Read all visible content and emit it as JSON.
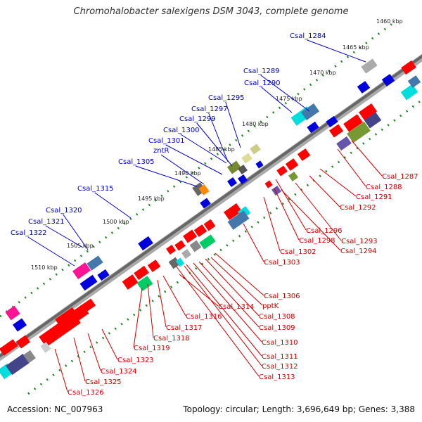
{
  "title": "Chromohalobacter salexigens DSM 3043, complete genome",
  "footer": {
    "accession": "Accession: NC_007963",
    "summary": "Topology: circular; Length: 3,696,649 bp; Genes: 3,388"
  },
  "ticks": [
    {
      "label": "1460 kbp"
    },
    {
      "label": "1465 kbp"
    },
    {
      "label": "1470 kbp"
    },
    {
      "label": "1475 kbp"
    },
    {
      "label": "1480 kbp"
    },
    {
      "label": "1485 kbp"
    },
    {
      "label": "1490 kbp"
    },
    {
      "label": "1495 kbp"
    },
    {
      "label": "1500 kbp"
    },
    {
      "label": "1505 kbp"
    },
    {
      "label": "1510 kbp"
    }
  ],
  "forward_labels": [
    "Csal_1284",
    "Csal_1289",
    "Csal_1290",
    "Csal_1295",
    "Csal_1297",
    "Csal_1299",
    "Csal_1300",
    "Csal_1301",
    "zntR",
    "Csal_1305",
    "Csal_1315",
    "Csal_1320",
    "Csal_1321",
    "Csal_1322"
  ],
  "reverse_labels": [
    "Csal_1287",
    "Csal_1288",
    "Csal_1291",
    "Csal_1292",
    "Csal_1293",
    "Csal_1294",
    "Csal_1296",
    "Csal_1298",
    "Csal_1302",
    "Csal_1303",
    "Csal_1306",
    "pptK",
    "Csal_1308",
    "Csal_1309",
    "Csal_1310",
    "Csal_1311",
    "Csal_1312",
    "Csal_1313",
    "Csal_1314",
    "Csal_1316",
    "Csal_1317",
    "Csal_1318",
    "Csal_1319",
    "Csal_1323",
    "Csal_1324",
    "Csal_1325",
    "Csal_1326"
  ],
  "colors": {
    "forward": "#0000ee",
    "reverse": "#ee0000",
    "backbone": "#777777",
    "tick": "#228822"
  }
}
